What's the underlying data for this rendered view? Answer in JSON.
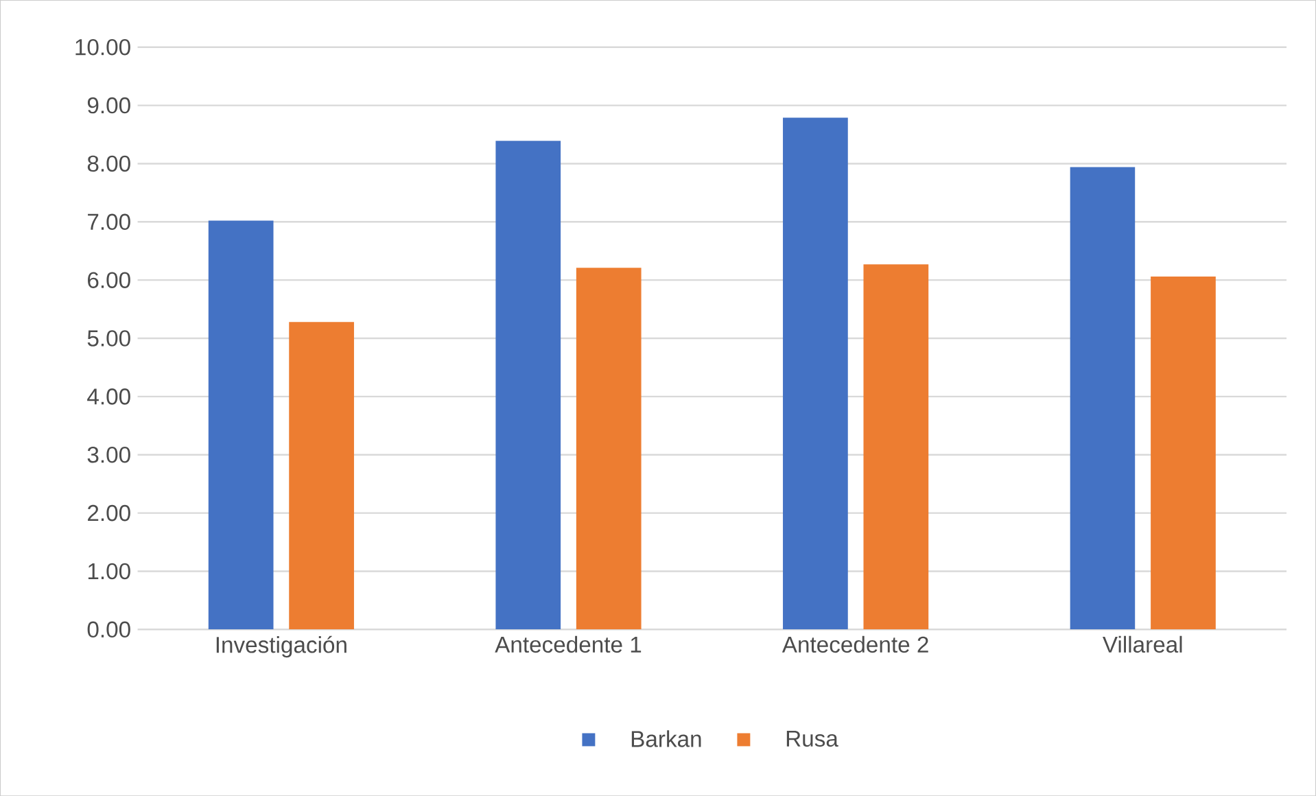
{
  "chart_data": {
    "type": "bar",
    "categories": [
      "Investigación",
      "Antecedente 1",
      "Antecedente 2",
      "Villareal"
    ],
    "series": [
      {
        "name": "Barkan",
        "color": "#4472c4",
        "values": [
          7.02,
          8.39,
          8.79,
          7.94
        ]
      },
      {
        "name": "Rusa",
        "color": "#ed7d31",
        "values": [
          5.28,
          6.21,
          6.27,
          6.06
        ]
      }
    ],
    "ylim": [
      0,
      10
    ],
    "yticks": [
      {
        "value": 0,
        "label": "0.00"
      },
      {
        "value": 1,
        "label": "1.00"
      },
      {
        "value": 2,
        "label": "2.00"
      },
      {
        "value": 3,
        "label": "3.00"
      },
      {
        "value": 4,
        "label": "4.00"
      },
      {
        "value": 5,
        "label": "5.00"
      },
      {
        "value": 6,
        "label": "6.00"
      },
      {
        "value": 7,
        "label": "7.00"
      },
      {
        "value": 8,
        "label": "8.00"
      },
      {
        "value": 9,
        "label": "9.00"
      },
      {
        "value": 10,
        "label": "10.00"
      }
    ],
    "grid": "y",
    "legend": "bottom"
  }
}
